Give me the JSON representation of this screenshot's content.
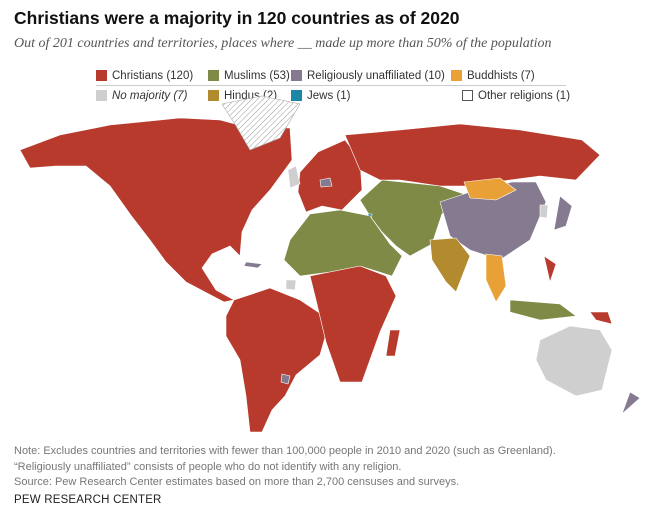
{
  "title": "Christians were a majority in 120 countries as of 2020",
  "subtitle": "Out of 201 countries and territories, places where __ made up more than 50% of the population",
  "legend": [
    {
      "label": "Christians (120)",
      "color": "#b83a2d"
    },
    {
      "label": "Muslims (53)",
      "color": "#7e8a45"
    },
    {
      "label": "Religiously unaffiliated (10)",
      "color": "#857a8f"
    },
    {
      "label": "Buddhists (7)",
      "color": "#e9a137"
    },
    {
      "label": "No majority (7)",
      "color": "#cfcfcf"
    },
    {
      "label": "Hindus (2)",
      "color": "#b18b2e"
    },
    {
      "label": "Jews (1)",
      "color": "#1b86a6"
    },
    {
      "label": "Other religions (1)",
      "color": "#ffffff"
    }
  ],
  "notes": [
    "Note: Excludes countries and territories with fewer than 100,000 people in 2010 and 2020 (such as Greenland).",
    "“Religiously unaffiliated” consists of people who do not identify with any religion.",
    "Source: Pew Research Center estimates based on more than 2,700 censuses and surveys."
  ],
  "brand": "PEW RESEARCH CENTER"
}
